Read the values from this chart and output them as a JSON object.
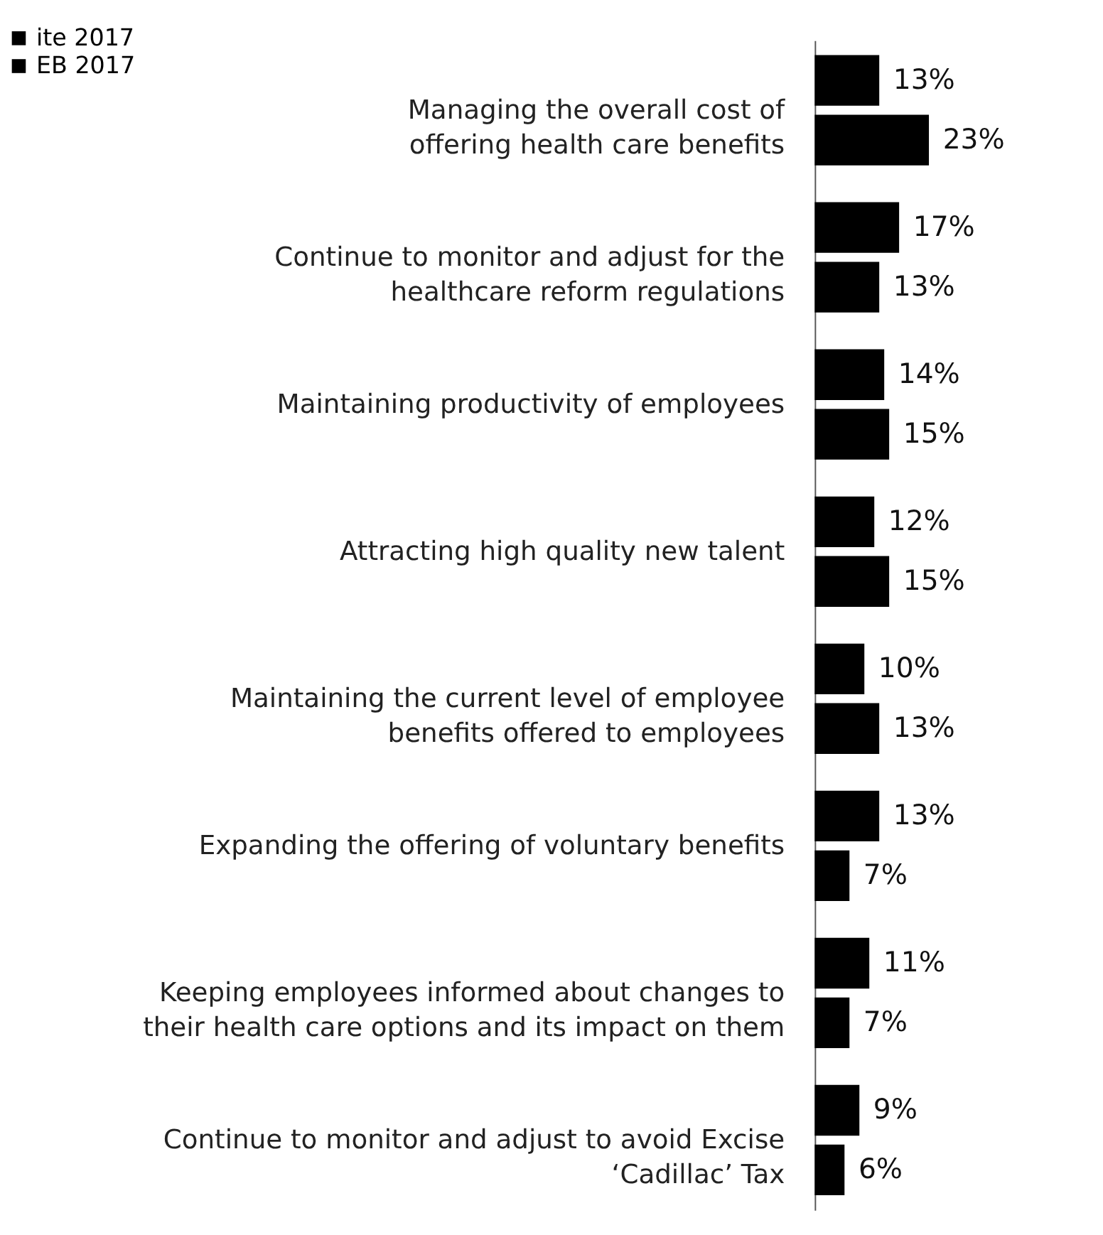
{
  "chart_data": {
    "type": "bar",
    "orientation": "horizontal",
    "categories": [
      "Managing the overall cost of\noffering health care benefits",
      "Continue to monitor and adjust for the\nhealthcare reform regulations",
      "Maintaining productivity of employees",
      "Attracting high quality new talent",
      "Maintaining the current level of employee\nbenefits offered to employees",
      "Expanding the offering of voluntary benefits",
      "Keeping employees informed about changes to\ntheir health care options and its impact on them",
      "Continue to monitor and adjust to avoid Excise\n‘Cadillac’ Tax"
    ],
    "series": [
      {
        "name": "ite 2017",
        "color": "#000000",
        "values": [
          13,
          17,
          14,
          12,
          10,
          13,
          11,
          9
        ],
        "value_labels": [
          "13%",
          "17%",
          "14%",
          "12%",
          "10%",
          "13%",
          "11%",
          "9%"
        ]
      },
      {
        "name": "EB 2017",
        "color": "#000000",
        "values": [
          23,
          13,
          15,
          15,
          13,
          7,
          7,
          6
        ],
        "value_labels": [
          "23%",
          "13%",
          "15%",
          "15%",
          "13%",
          "7%",
          "7%",
          "6%"
        ]
      }
    ],
    "legend": "top left",
    "grid": false
  }
}
